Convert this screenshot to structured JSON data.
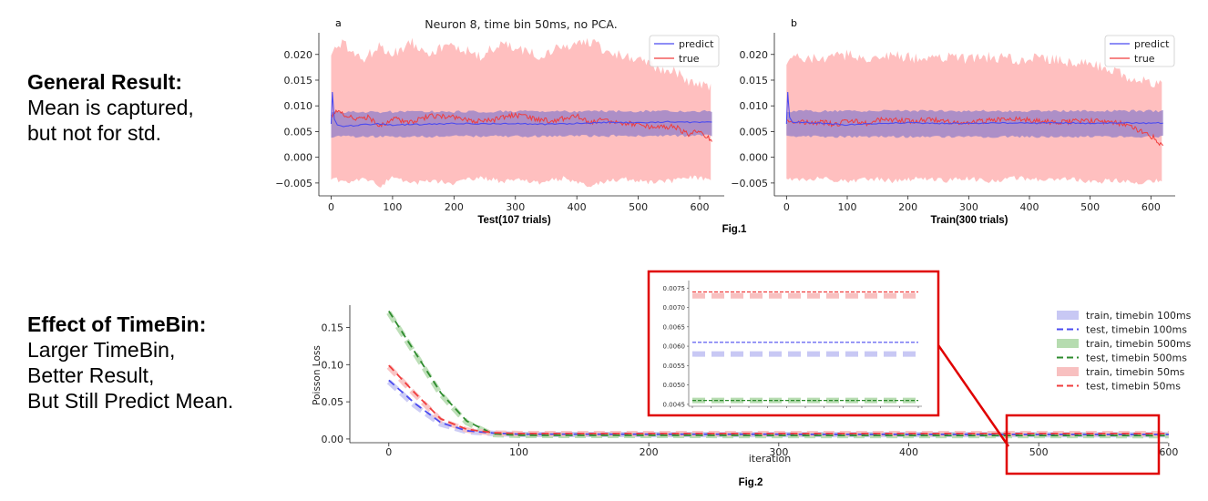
{
  "left_notes": [
    {
      "heading": "General Result:",
      "lines": [
        "Mean is captured,",
        "but not for std."
      ]
    },
    {
      "heading": "Effect of TimeBin:",
      "lines": [
        "Larger TimeBin,",
        "Better Result,",
        "But Still Predict Mean."
      ]
    }
  ],
  "fig1_caption": "Fig.1",
  "fig2_caption": "Fig.2",
  "colors": {
    "predict": "#4b4bf0",
    "true": "#f03c3c",
    "true_band": "#ffb4b4",
    "predict_band": "#9f86c8",
    "green": "#2e8b2e",
    "green_band": "#b6dcb0",
    "blue_band": "#c8c8f4",
    "red_band": "#f8c0c0",
    "zoom_box": "#e00000"
  },
  "chart_data": [
    {
      "type": "line",
      "panel_label": "a",
      "title": "Neuron 8, time bin 50ms, no PCA.",
      "xlabel": "Test(107 trials)",
      "ylabel": "",
      "xlim": [
        -20,
        640
      ],
      "ylim": [
        -0.0075,
        0.0235
      ],
      "xticks": [
        0,
        100,
        200,
        300,
        400,
        500,
        600
      ],
      "yticks": [
        -0.005,
        0.0,
        0.005,
        0.01,
        0.015,
        0.02
      ],
      "ytick_labels": [
        "−0.005",
        "0.000",
        "0.005",
        "0.010",
        "0.015",
        "0.020"
      ],
      "legend": "top-right",
      "series": [
        {
          "name": "predict",
          "mean": {
            "x": [
              0,
              2,
              5,
              10,
              20,
              40,
              60,
              80,
              100,
              150,
              200,
              250,
              300,
              350,
              400,
              450,
              500,
              550,
              600,
              620
            ],
            "y": [
              0.0065,
              0.0127,
              0.0075,
              0.0063,
              0.006,
              0.0062,
              0.0064,
              0.0065,
              0.0063,
              0.0064,
              0.0066,
              0.0065,
              0.0066,
              0.0064,
              0.0066,
              0.0068,
              0.0067,
              0.0069,
              0.0068,
              0.0069
            ]
          },
          "band": {
            "x": [
              0,
              620
            ],
            "lower": [
              0.004,
              0.0042
            ],
            "upper": [
              0.0088,
              0.009
            ]
          }
        },
        {
          "name": "true",
          "mean": {
            "x": [
              0,
              10,
              20,
              40,
              60,
              80,
              100,
              130,
              160,
              200,
              230,
              260,
              300,
              330,
              360,
              400,
              420,
              440,
              470,
              500,
              530,
              560,
              580,
              600,
              610,
              620
            ],
            "y": [
              0.008,
              0.0088,
              0.0085,
              0.0072,
              0.0078,
              0.006,
              0.0075,
              0.0068,
              0.008,
              0.0078,
              0.0069,
              0.0072,
              0.0082,
              0.0075,
              0.007,
              0.0082,
              0.0068,
              0.0073,
              0.0066,
              0.0065,
              0.0057,
              0.006,
              0.0045,
              0.0052,
              0.004,
              0.0032
            ]
          },
          "band": {
            "x": [
              0,
              20,
              50,
              80,
              100,
              130,
              160,
              200,
              240,
              280,
              300,
              340,
              380,
              420,
              450,
              480,
              520,
              560,
              580,
              600,
              620
            ],
            "lower": [
              -0.004,
              -0.0048,
              -0.0042,
              -0.0055,
              -0.004,
              -0.0052,
              -0.0045,
              -0.005,
              -0.0038,
              -0.0048,
              -0.0042,
              -0.005,
              -0.004,
              -0.0055,
              -0.0045,
              -0.0042,
              -0.005,
              -0.0045,
              -0.004,
              -0.004,
              -0.0042
            ],
            "upper": [
              0.0205,
              0.022,
              0.019,
              0.0215,
              0.02,
              0.0225,
              0.0205,
              0.0218,
              0.0195,
              0.0222,
              0.021,
              0.0198,
              0.0215,
              0.0225,
              0.0205,
              0.0195,
              0.018,
              0.0165,
              0.015,
              0.014,
              0.0135
            ]
          }
        }
      ]
    },
    {
      "type": "line",
      "panel_label": "b",
      "title": "",
      "xlabel": "Train(300 trials)",
      "ylabel": "",
      "xlim": [
        -20,
        640
      ],
      "ylim": [
        -0.0075,
        0.0235
      ],
      "xticks": [
        0,
        100,
        200,
        300,
        400,
        500,
        600
      ],
      "yticks": [
        -0.005,
        0.0,
        0.005,
        0.01,
        0.015,
        0.02
      ],
      "ytick_labels": [
        "−0.005",
        "0.000",
        "0.005",
        "0.010",
        "0.015",
        "0.020"
      ],
      "legend": "top-right",
      "series": [
        {
          "name": "predict",
          "mean": {
            "x": [
              0,
              2,
              5,
              10,
              30,
              60,
              100,
              150,
              200,
              250,
              300,
              350,
              400,
              450,
              500,
              550,
              600,
              620
            ],
            "y": [
              0.0065,
              0.0127,
              0.0078,
              0.0068,
              0.0068,
              0.0066,
              0.0063,
              0.0066,
              0.0067,
              0.0066,
              0.0066,
              0.0067,
              0.0066,
              0.0067,
              0.0066,
              0.0067,
              0.0066,
              0.0067
            ]
          },
          "band": {
            "x": [
              0,
              620
            ],
            "lower": [
              0.004,
              0.004
            ],
            "upper": [
              0.009,
              0.009
            ]
          }
        },
        {
          "name": "true",
          "mean": {
            "x": [
              0,
              20,
              40,
              60,
              80,
              100,
              130,
              160,
              200,
              240,
              280,
              320,
              360,
              400,
              440,
              480,
              520,
              550,
              570,
              590,
              605,
              620
            ],
            "y": [
              0.0072,
              0.007,
              0.0066,
              0.0068,
              0.0063,
              0.0072,
              0.0066,
              0.0075,
              0.007,
              0.0073,
              0.0068,
              0.007,
              0.0075,
              0.0072,
              0.0068,
              0.0071,
              0.007,
              0.0066,
              0.0058,
              0.0048,
              0.0038,
              0.0022
            ]
          },
          "band": {
            "x": [
              0,
              30,
              60,
              100,
              140,
              180,
              220,
              260,
              300,
              340,
              380,
              420,
              460,
              500,
              540,
              570,
              600,
              620
            ],
            "lower": [
              -0.004,
              -0.0045,
              -0.004,
              -0.0048,
              -0.0042,
              -0.0046,
              -0.004,
              -0.0045,
              -0.0042,
              -0.0046,
              -0.004,
              -0.0045,
              -0.0042,
              -0.0048,
              -0.0045,
              -0.005,
              -0.0045,
              -0.0045
            ],
            "upper": [
              0.019,
              0.0195,
              0.0188,
              0.02,
              0.0192,
              0.0198,
              0.019,
              0.0196,
              0.0192,
              0.0195,
              0.019,
              0.0194,
              0.0185,
              0.018,
              0.017,
              0.015,
              0.0145,
              0.014
            ]
          }
        }
      ]
    },
    {
      "type": "line",
      "title": "",
      "xlabel": "iteration",
      "ylabel": "Poisson Loss",
      "xlim": [
        -30,
        605
      ],
      "ylim": [
        -0.005,
        0.18
      ],
      "xticks": [
        0,
        100,
        200,
        300,
        400,
        500,
        600
      ],
      "yticks": [
        0.0,
        0.05,
        0.1,
        0.15
      ],
      "ytick_labels": [
        "0.00",
        "0.05",
        "0.10",
        "0.15"
      ],
      "legend": "right",
      "series": [
        {
          "name": "train, timebin 100ms",
          "style": "band",
          "color": "blue",
          "x": [
            0,
            20,
            40,
            60,
            80,
            100,
            600
          ],
          "y": [
            0.077,
            0.045,
            0.02,
            0.01,
            0.0075,
            0.006,
            0.0058
          ]
        },
        {
          "name": "test, timebin 100ms",
          "style": "dashed",
          "color": "blue",
          "x": [
            0,
            20,
            40,
            60,
            80,
            100,
            600
          ],
          "y": [
            0.079,
            0.048,
            0.022,
            0.011,
            0.008,
            0.0065,
            0.0061
          ]
        },
        {
          "name": "train, timebin 500ms",
          "style": "band",
          "color": "green",
          "x": [
            0,
            20,
            40,
            60,
            80,
            100,
            600
          ],
          "y": [
            0.17,
            0.115,
            0.06,
            0.022,
            0.006,
            0.0048,
            0.0046
          ]
        },
        {
          "name": "test, timebin 500ms",
          "style": "dashed",
          "color": "green",
          "x": [
            0,
            20,
            40,
            60,
            80,
            100,
            600
          ],
          "y": [
            0.172,
            0.117,
            0.062,
            0.024,
            0.007,
            0.005,
            0.0046
          ]
        },
        {
          "name": "train, timebin 50ms",
          "style": "band",
          "color": "red",
          "x": [
            0,
            20,
            40,
            60,
            80,
            100,
            600
          ],
          "y": [
            0.097,
            0.06,
            0.025,
            0.012,
            0.008,
            0.0073,
            0.0073
          ]
        },
        {
          "name": "test, timebin 50ms",
          "style": "dashed",
          "color": "red",
          "x": [
            0,
            20,
            40,
            60,
            80,
            100,
            600
          ],
          "y": [
            0.099,
            0.062,
            0.027,
            0.013,
            0.0085,
            0.0074,
            0.0074
          ]
        }
      ],
      "inset": {
        "ylim": [
          0.00445,
          0.0076
        ],
        "yticks": [
          0.0045,
          0.005,
          0.0055,
          0.006,
          0.0065,
          0.007,
          0.0075
        ],
        "ytick_labels": [
          "0.0045",
          "0.0050",
          "0.0055",
          "0.0060",
          "0.0065",
          "0.0070",
          "0.0075"
        ],
        "xrange": [
          480,
          600
        ],
        "zoomed_region_x": [
          480,
          600
        ]
      }
    }
  ]
}
